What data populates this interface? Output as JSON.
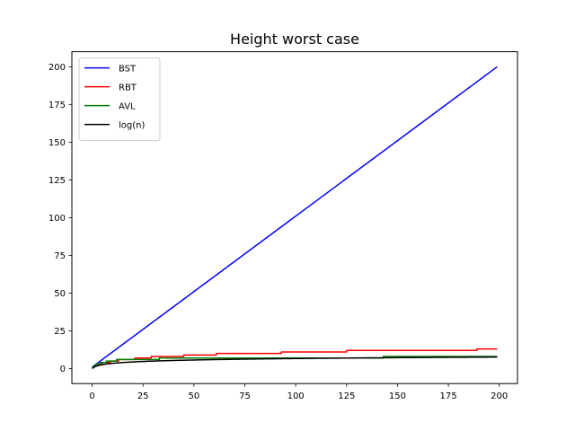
{
  "chart_data": {
    "type": "line",
    "title": "Height worst case",
    "xlabel": "",
    "ylabel": "",
    "xlim": [
      -9.95,
      208.95
    ],
    "ylim": [
      -9.95,
      209.95
    ],
    "xticks": [
      0,
      25,
      50,
      75,
      100,
      125,
      150,
      175,
      200
    ],
    "yticks": [
      0,
      25,
      50,
      75,
      100,
      125,
      150,
      175,
      200
    ],
    "grid": false,
    "legend_position": "top-left",
    "series": [
      {
        "name": "BST",
        "color": "#0000ff",
        "kind": "linear",
        "x": [
          0,
          199
        ],
        "values": [
          1,
          200
        ]
      },
      {
        "name": "RBT",
        "color": "#ff0000",
        "kind": "step",
        "x": [
          0,
          1,
          3,
          5,
          9,
          13,
          21,
          29,
          45,
          61,
          93,
          125,
          189,
          199
        ],
        "values": [
          1,
          2,
          3,
          4,
          5,
          6,
          7,
          8,
          9,
          10,
          11,
          12,
          13,
          13
        ]
      },
      {
        "name": "AVL",
        "color": "#008000",
        "kind": "step",
        "x": [
          0,
          1,
          2,
          4,
          7,
          12,
          20,
          33,
          54,
          88,
          143,
          199
        ],
        "values": [
          1,
          2,
          3,
          4,
          5,
          6,
          6,
          7,
          7,
          7,
          8,
          8
        ]
      },
      {
        "name": "log(n)",
        "color": "#000000",
        "kind": "log2",
        "x": [
          0,
          199
        ],
        "values": [
          0,
          7.64
        ]
      }
    ]
  }
}
